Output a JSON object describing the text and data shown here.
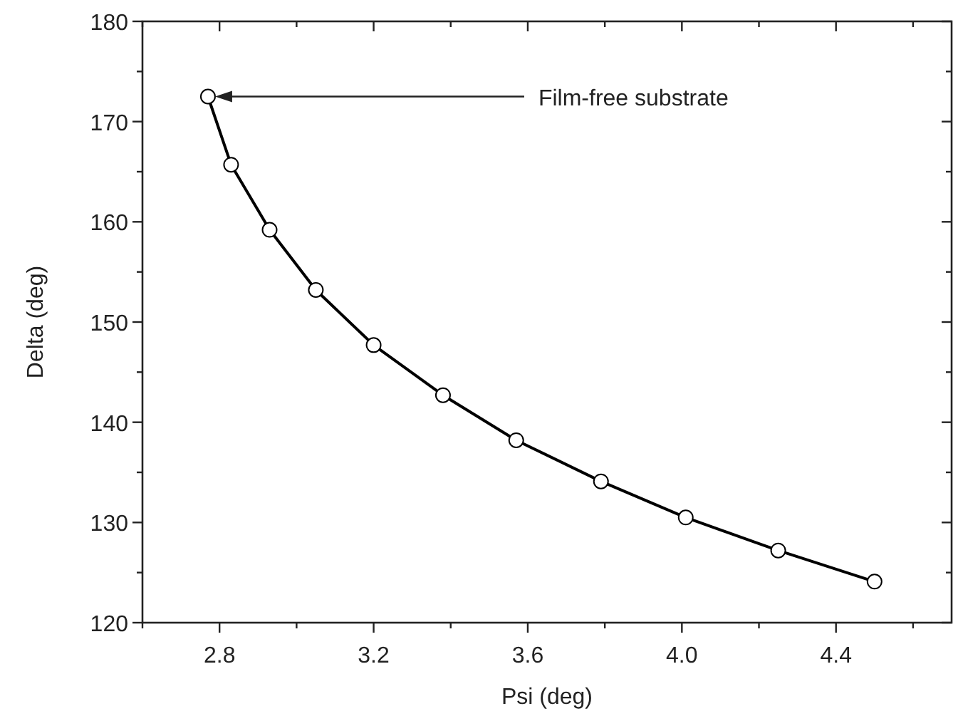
{
  "chart_data": {
    "type": "line",
    "xlabel": "Psi (deg)",
    "ylabel": "Delta (deg)",
    "x": [
      2.77,
      2.83,
      2.93,
      3.05,
      3.2,
      3.38,
      3.57,
      3.79,
      4.01,
      4.25,
      4.5
    ],
    "series": [
      {
        "color": "#000000",
        "values": [
          172.5,
          165.7,
          159.2,
          153.2,
          147.7,
          142.7,
          138.2,
          134.1,
          130.5,
          127.2,
          124.1
        ]
      }
    ],
    "xlim": [
      2.6,
      4.7
    ],
    "xticks": [
      {
        "value": 2.6,
        "label": null
      },
      2.8,
      {
        "value": 3.0,
        "label": null
      },
      3.2,
      {
        "value": 3.4,
        "label": null
      },
      3.6,
      {
        "value": 3.8,
        "label": null
      },
      {
        "value": 4.0,
        "label": "4.0"
      },
      {
        "value": 4.2,
        "label": null
      },
      4.4,
      {
        "value": 4.6,
        "label": null
      }
    ],
    "ylim": [
      120,
      180
    ],
    "yticks": [
      120,
      {
        "value": 125,
        "label": null
      },
      130,
      {
        "value": 135,
        "label": null
      },
      140,
      {
        "value": 145,
        "label": null
      },
      150,
      {
        "value": 155,
        "label": null
      },
      160,
      {
        "value": 165,
        "label": null
      },
      170,
      {
        "value": 175,
        "label": null
      },
      180
    ],
    "marker": "circle",
    "line_style": "solid",
    "grid": false,
    "annotations": [
      "Film-free substrate"
    ]
  }
}
